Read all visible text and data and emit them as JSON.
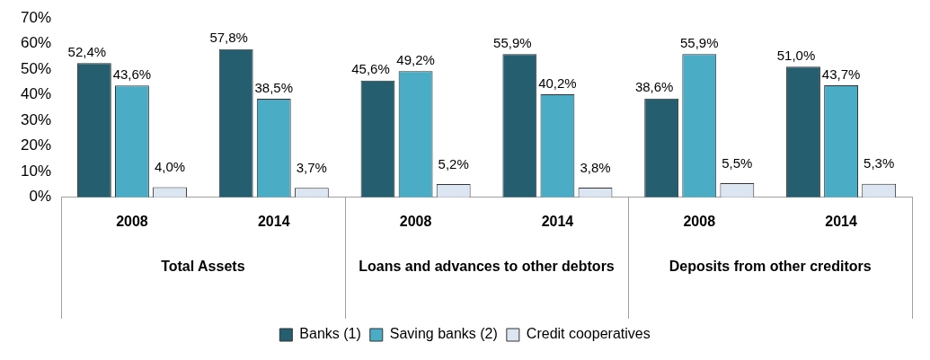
{
  "chart_data": {
    "type": "bar",
    "categories": [
      "2008",
      "2014",
      "2008",
      "2014",
      "2008",
      "2014"
    ],
    "annotations": [
      "Total Assets",
      "Loans and advances to other debtors",
      "Deposits from other creditors"
    ],
    "series": [
      {
        "name": "Banks (1)",
        "color": "#255e6e",
        "values": [
          52.4,
          57.8,
          45.6,
          55.9,
          38.6,
          51.0
        ],
        "value_labels": [
          "52,4%",
          "57,8%",
          "45,6%",
          "55,9%",
          "38,6%",
          "51,0%"
        ]
      },
      {
        "name": "Saving banks (2)",
        "color": "#4bacc6",
        "values": [
          43.6,
          38.5,
          49.2,
          40.2,
          55.9,
          43.7
        ],
        "value_labels": [
          "43,6%",
          "38,5%",
          "49,2%",
          "40,2%",
          "55,9%",
          "43,7%"
        ]
      },
      {
        "name": "Credit cooperatives",
        "color": "#dce6f2",
        "values": [
          4.0,
          3.7,
          5.2,
          3.8,
          5.5,
          5.3
        ],
        "value_labels": [
          "4,0%",
          "3,7%",
          "5,2%",
          "3,8%",
          "5,5%",
          "5,3%"
        ]
      }
    ],
    "ylim": [
      0,
      70
    ],
    "yticks": [
      {
        "value": 0,
        "label": "0%"
      },
      {
        "value": 10,
        "label": "10%"
      },
      {
        "value": 20,
        "label": "20%"
      },
      {
        "value": 30,
        "label": "30%"
      },
      {
        "value": 40,
        "label": "40%"
      },
      {
        "value": 50,
        "label": "50%"
      },
      {
        "value": 60,
        "label": "60%"
      },
      {
        "value": 70,
        "label": "70%"
      }
    ],
    "grid": false,
    "legend": "bottom"
  }
}
